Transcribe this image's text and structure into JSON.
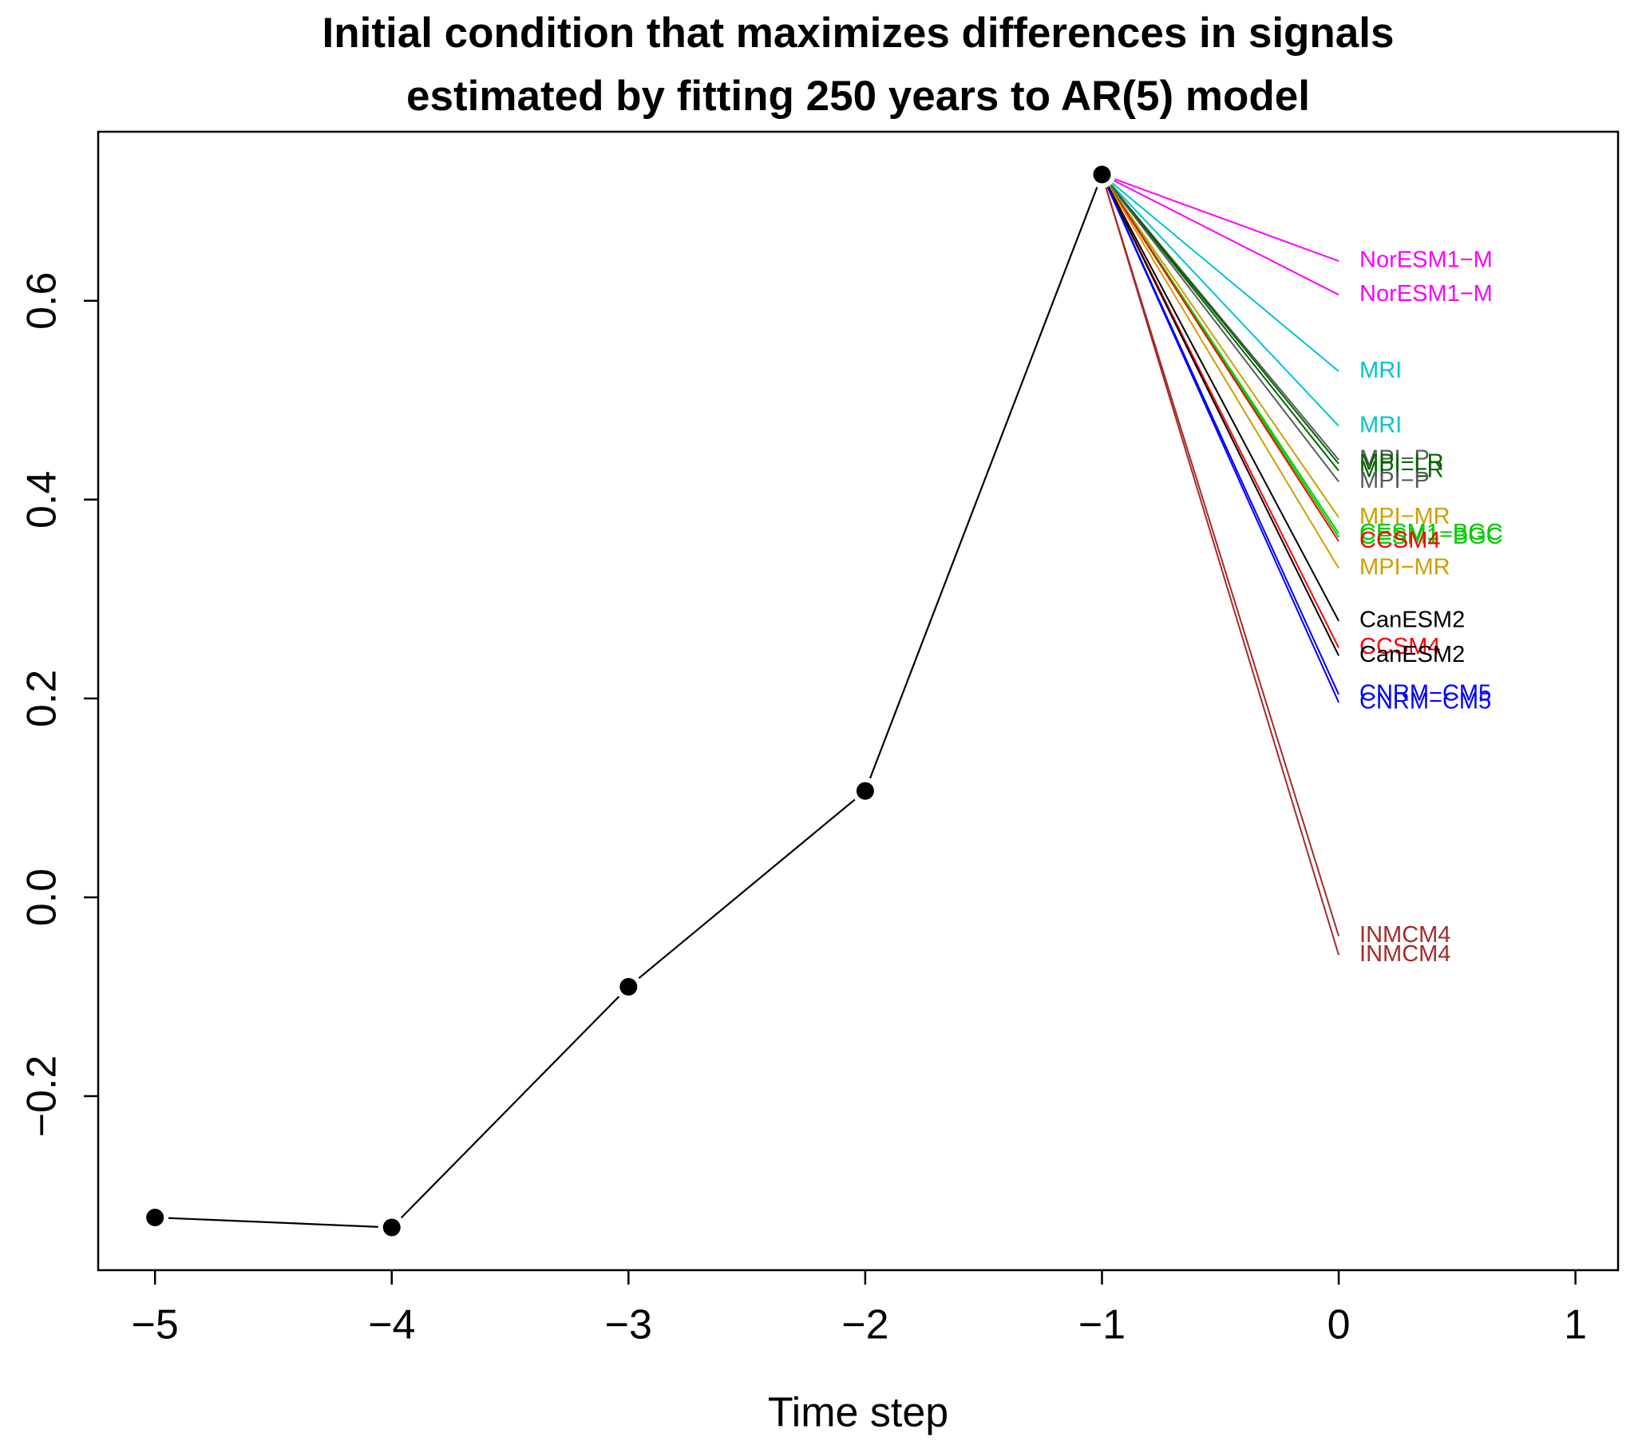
{
  "chart_data": {
    "type": "line",
    "title": "Initial condition that maximizes differences in signals",
    "subtitle": "estimated by fitting 250 years to AR(5) model",
    "x_label": "Time step",
    "x": [
      -5,
      -4,
      -3,
      -2,
      -1
    ],
    "values": [
      -0.322,
      -0.332,
      -0.09,
      0.107,
      0.727
    ],
    "color": "#000000",
    "xlim": [
      -5.24,
      1.18
    ],
    "ylim": [
      -0.375,
      0.77
    ],
    "xticks": [
      {
        "value": -5,
        "label": "−5"
      },
      {
        "value": -4,
        "label": "−4"
      },
      {
        "value": -3,
        "label": "−3"
      },
      {
        "value": -2,
        "label": "−2"
      },
      {
        "value": -1,
        "label": "−1"
      },
      0,
      1
    ],
    "yticks": [
      {
        "value": -0.2,
        "label": "−0.2"
      },
      {
        "value": 0,
        "label": "0.0"
      },
      0.2,
      0.4,
      0.6
    ],
    "series": [
      {
        "name": "NorESM1−M",
        "color": "#ff00ff",
        "x": [
          -1,
          0
        ],
        "values": [
          0.727,
          0.64
        ]
      },
      {
        "name": "NorESM1−M",
        "color": "#ff00ff",
        "x": [
          -1,
          0
        ],
        "values": [
          0.727,
          0.606
        ]
      },
      {
        "name": "MRI",
        "color": "#00c5cd",
        "x": [
          -1,
          0
        ],
        "values": [
          0.727,
          0.529
        ]
      },
      {
        "name": "MRI",
        "color": "#00c5cd",
        "x": [
          -1,
          0
        ],
        "values": [
          0.727,
          0.474
        ]
      },
      {
        "name": "MPI−P",
        "color": "#5a5a5a",
        "x": [
          -1,
          0
        ],
        "values": [
          0.727,
          0.44
        ]
      },
      {
        "name": "MPI−LR",
        "color": "#006400",
        "x": [
          -1,
          0
        ],
        "values": [
          0.727,
          0.436
        ]
      },
      {
        "name": "MPI−LR",
        "color": "#006400",
        "x": [
          -1,
          0
        ],
        "values": [
          0.727,
          0.429
        ]
      },
      {
        "name": "MPI−P",
        "color": "#5a5a5a",
        "x": [
          -1,
          0
        ],
        "values": [
          0.727,
          0.418
        ]
      },
      {
        "name": "MPI−MR",
        "color": "#cda000",
        "x": [
          -1,
          0
        ],
        "values": [
          0.727,
          0.382
        ]
      },
      {
        "name": "CESM1−BGC",
        "color": "#00cd00",
        "x": [
          -1,
          0
        ],
        "values": [
          0.727,
          0.366
        ]
      },
      {
        "name": "CESM1−BGC",
        "color": "#00cd00",
        "x": [
          -1,
          0
        ],
        "values": [
          0.727,
          0.362
        ]
      },
      {
        "name": "CCSM4",
        "color": "#ff0000",
        "x": [
          -1,
          0
        ],
        "values": [
          0.727,
          0.358
        ]
      },
      {
        "name": "MPI−MR",
        "color": "#cda000",
        "x": [
          -1,
          0
        ],
        "values": [
          0.727,
          0.331
        ]
      },
      {
        "name": "CanESM2",
        "color": "#000000",
        "x": [
          -1,
          0
        ],
        "values": [
          0.727,
          0.278
        ]
      },
      {
        "name": "CCSM4",
        "color": "#ff0000",
        "x": [
          -1,
          0
        ],
        "values": [
          0.727,
          0.251
        ]
      },
      {
        "name": "CanESM2",
        "color": "#000000",
        "x": [
          -1,
          0
        ],
        "values": [
          0.727,
          0.243
        ]
      },
      {
        "name": "CNRM−CM5",
        "color": "#0000ff",
        "x": [
          -1,
          0
        ],
        "values": [
          0.727,
          0.204
        ]
      },
      {
        "name": "CNRM−CM5",
        "color": "#0000ff",
        "x": [
          -1,
          0
        ],
        "values": [
          0.727,
          0.196
        ]
      },
      {
        "name": "INMCM4",
        "color": "#a52a2a",
        "x": [
          -1,
          0
        ],
        "values": [
          0.727,
          -0.039
        ]
      },
      {
        "name": "INMCM4",
        "color": "#a52a2a",
        "x": [
          -1,
          0
        ],
        "values": [
          0.727,
          -0.058
        ]
      }
    ]
  }
}
